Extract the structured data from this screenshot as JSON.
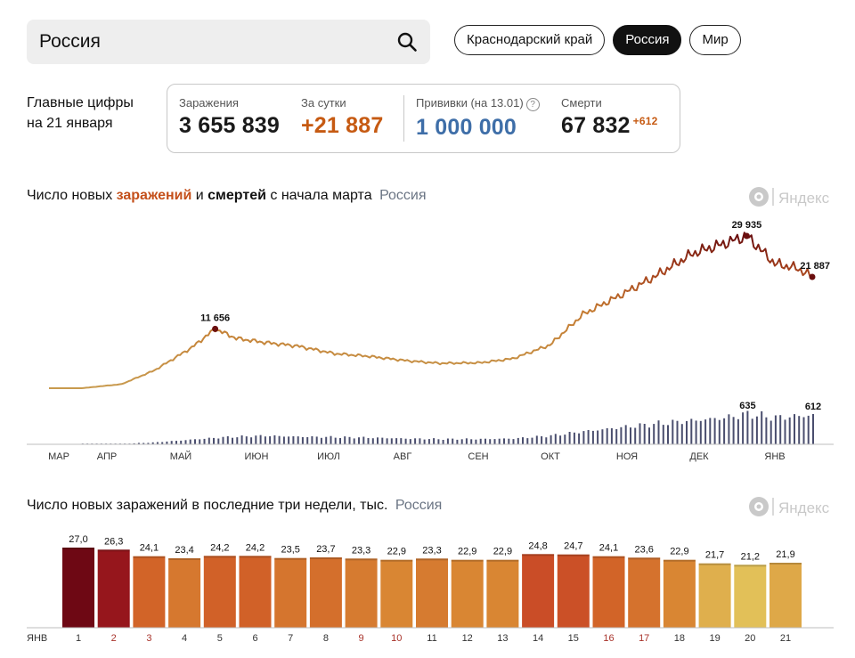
{
  "search": {
    "value": "Россия"
  },
  "regions": [
    {
      "label": "Краснодарский край",
      "active": false
    },
    {
      "label": "Россия",
      "active": true
    },
    {
      "label": "Мир",
      "active": false
    }
  ],
  "key_figures": {
    "title_line1": "Главные цифры",
    "title_line2": "на 21 января",
    "infections_label": "Заражения",
    "infections_value": "3 655 839",
    "daily_label": "За сутки",
    "daily_value": "+21 887",
    "vaccinations_label": "Прививки (на 13.01)",
    "vaccinations_help": "?",
    "vaccinations_value": "1 000 000",
    "deaths_label": "Смерти",
    "deaths_value": "67 832",
    "deaths_delta": "+612"
  },
  "colors": {
    "infections_accent": "#c4501b",
    "daily_orange": "#c65a12",
    "vaccination_blue": "#3e6ea8",
    "deaths_bar": "#4a4e6e",
    "peak_dot": "#6a0e0e"
  },
  "chart1": {
    "title_part1": "Число новых ",
    "title_bold1": "заражений",
    "title_part2": " и ",
    "title_bold2": "смертей",
    "title_part3": " с начала марта",
    "region": "Россия",
    "logo_text": "Яндекс",
    "logo_icon": "yandex-eye-icon"
  },
  "chart2": {
    "title": "Число новых заражений в последние три недели, тыс.",
    "region": "Россия",
    "logo_text": "Яндекс",
    "logo_icon": "yandex-eye-icon"
  },
  "chart_data": [
    {
      "type": "line",
      "x_tick_labels": [
        "МАР",
        "АПР",
        "МАЙ",
        "ИЮН",
        "ИЮЛ",
        "АВГ",
        "СЕН",
        "ОКТ",
        "НОЯ",
        "ДЕК",
        "ЯНВ"
      ],
      "series": [
        {
          "kind": "line",
          "x": [
            "2020-03-15",
            "2020-04-01",
            "2020-04-15",
            "2020-05-01",
            "2020-05-11",
            "2020-05-20",
            "2020-06-01",
            "2020-06-15",
            "2020-07-01",
            "2020-07-15",
            "2020-08-01",
            "2020-08-15",
            "2020-09-01",
            "2020-09-15",
            "2020-10-01",
            "2020-10-15",
            "2020-11-01",
            "2020-11-15",
            "2020-12-01",
            "2020-12-15",
            "2020-12-24",
            "2021-01-05",
            "2021-01-15",
            "2021-01-21"
          ],
          "values": [
            0,
            800,
            3500,
            8000,
            11656,
            9800,
            9000,
            8300,
            6800,
            6300,
            5400,
            4900,
            5000,
            5800,
            8500,
            14500,
            18500,
            22000,
            26500,
            28500,
            29935,
            24500,
            23500,
            21887
          ],
          "labeled_points": [
            {
              "date": "2020-05-11",
              "value": 11656,
              "label": "11 656"
            },
            {
              "date": "2020-12-24",
              "value": 29935,
              "label": "29 935"
            },
            {
              "date": "2021-01-21",
              "value": 21887,
              "label": "21 887"
            }
          ]
        },
        {
          "kind": "bar",
          "x": [
            "2020-03-15",
            "2020-04-01",
            "2020-04-15",
            "2020-05-01",
            "2020-05-15",
            "2020-06-01",
            "2020-06-15",
            "2020-07-01",
            "2020-07-15",
            "2020-08-01",
            "2020-08-15",
            "2020-09-01",
            "2020-09-15",
            "2020-10-01",
            "2020-10-15",
            "2020-11-01",
            "2020-11-15",
            "2020-12-01",
            "2020-12-15",
            "2020-12-24",
            "2021-01-05",
            "2021-01-21"
          ],
          "values": [
            0,
            10,
            40,
            100,
            150,
            180,
            160,
            150,
            140,
            120,
            110,
            110,
            120,
            180,
            270,
            360,
            430,
            500,
            560,
            635,
            560,
            612
          ],
          "labeled_points": [
            {
              "date": "2020-12-24",
              "value": 635,
              "label": "635"
            },
            {
              "date": "2021-01-21",
              "value": 612,
              "label": "612"
            }
          ]
        }
      ]
    },
    {
      "type": "bar",
      "month_label": "ЯНВ",
      "categories": [
        "1",
        "2",
        "3",
        "4",
        "5",
        "6",
        "7",
        "8",
        "9",
        "10",
        "11",
        "12",
        "13",
        "14",
        "15",
        "16",
        "17",
        "18",
        "19",
        "20",
        "21"
      ],
      "values": [
        27.0,
        26.3,
        24.1,
        23.4,
        24.2,
        24.2,
        23.5,
        23.7,
        23.3,
        22.9,
        23.3,
        22.9,
        22.9,
        24.8,
        24.7,
        24.1,
        23.6,
        22.9,
        21.7,
        21.2,
        21.9
      ],
      "value_labels": [
        "27,0",
        "26,3",
        "24,1",
        "23,4",
        "24,2",
        "24,2",
        "23,5",
        "23,7",
        "23,3",
        "22,9",
        "23,3",
        "22,9",
        "22,9",
        "24,8",
        "24,7",
        "24,1",
        "23,6",
        "22,9",
        "21,7",
        "21,2",
        "21,9"
      ],
      "holiday_days": [
        "2",
        "3",
        "9",
        "10",
        "16",
        "17"
      ],
      "holiday_color": "#a8322a"
    }
  ]
}
